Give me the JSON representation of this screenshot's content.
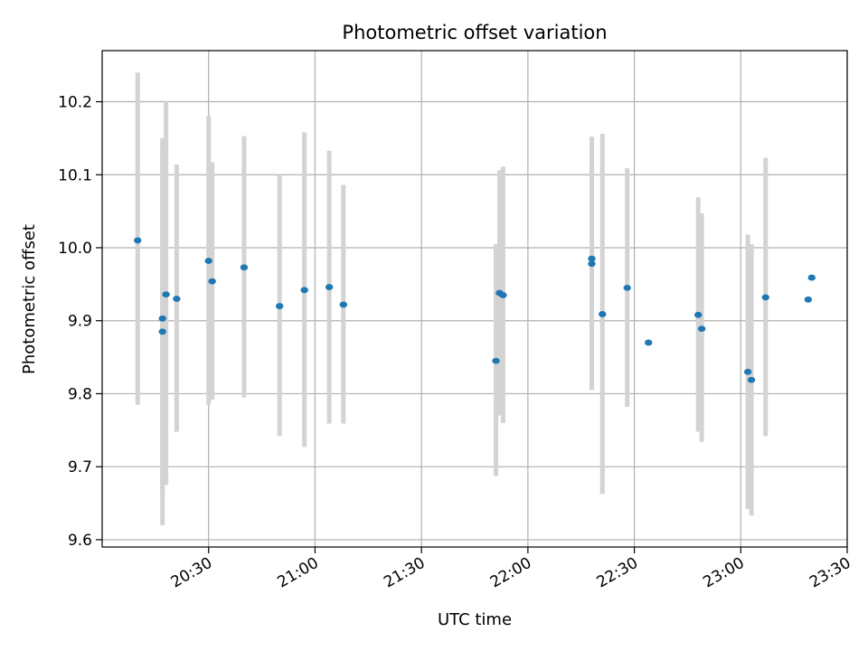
{
  "chart_data": {
    "type": "scatter",
    "title": "Photometric offset variation",
    "xlabel": "UTC time",
    "ylabel": "Photometric offset",
    "xlim": [
      "20:00",
      "23:30"
    ],
    "ylim": [
      9.59,
      10.27
    ],
    "grid": true,
    "x_ticks": [
      "20:30",
      "21:00",
      "21:30",
      "22:00",
      "22:30",
      "23:00",
      "23:30"
    ],
    "y_ticks": [
      "9.6",
      "9.7",
      "9.8",
      "9.9",
      "10.0",
      "10.1",
      "10.2"
    ],
    "colors": {
      "points": "#1f77b4",
      "errorbars": "#d3d3d3",
      "grid": "#b0b0b0"
    },
    "points": [
      {
        "x": "20:10",
        "y": 10.01,
        "ylow": 9.785,
        "yhigh": 10.24
      },
      {
        "x": "20:17",
        "y": 9.903,
        "ylow": 9.667,
        "yhigh": 10.14
      },
      {
        "x": "20:17",
        "y": 9.885,
        "ylow": 9.62,
        "yhigh": 10.15
      },
      {
        "x": "20:18",
        "y": 9.936,
        "ylow": 9.675,
        "yhigh": 10.2
      },
      {
        "x": "20:21",
        "y": 9.93,
        "ylow": 9.748,
        "yhigh": 10.114
      },
      {
        "x": "20:30",
        "y": 9.982,
        "ylow": 9.785,
        "yhigh": 10.181
      },
      {
        "x": "20:31",
        "y": 9.954,
        "ylow": 9.792,
        "yhigh": 10.117
      },
      {
        "x": "20:40",
        "y": 9.973,
        "ylow": 9.795,
        "yhigh": 10.153
      },
      {
        "x": "20:50",
        "y": 9.92,
        "ylow": 9.742,
        "yhigh": 10.1
      },
      {
        "x": "20:57",
        "y": 9.942,
        "ylow": 9.727,
        "yhigh": 10.158
      },
      {
        "x": "21:04",
        "y": 9.946,
        "ylow": 9.759,
        "yhigh": 10.133
      },
      {
        "x": "21:08",
        "y": 9.922,
        "ylow": 9.759,
        "yhigh": 10.086
      },
      {
        "x": "21:51",
        "y": 9.845,
        "ylow": 9.687,
        "yhigh": 10.005
      },
      {
        "x": "21:52",
        "y": 9.938,
        "ylow": 9.77,
        "yhigh": 10.106
      },
      {
        "x": "21:53",
        "y": 9.935,
        "ylow": 9.76,
        "yhigh": 10.111
      },
      {
        "x": "22:18",
        "y": 9.978,
        "ylow": 9.805,
        "yhigh": 10.152
      },
      {
        "x": "22:18",
        "y": 9.985,
        "ylow": 9.818,
        "yhigh": 10.152
      },
      {
        "x": "22:21",
        "y": 9.909,
        "ylow": 9.663,
        "yhigh": 10.156
      },
      {
        "x": "22:28",
        "y": 9.945,
        "ylow": 9.782,
        "yhigh": 10.109
      },
      {
        "x": "22:34",
        "y": 9.87,
        "ylow": 9.87,
        "yhigh": 9.87
      },
      {
        "x": "22:48",
        "y": 9.908,
        "ylow": 9.748,
        "yhigh": 10.069
      },
      {
        "x": "22:49",
        "y": 9.889,
        "ylow": 9.734,
        "yhigh": 10.047
      },
      {
        "x": "23:02",
        "y": 9.83,
        "ylow": 9.642,
        "yhigh": 10.018
      },
      {
        "x": "23:03",
        "y": 9.819,
        "ylow": 9.633,
        "yhigh": 10.005
      },
      {
        "x": "23:07",
        "y": 9.932,
        "ylow": 9.742,
        "yhigh": 10.123
      },
      {
        "x": "23:19",
        "y": 9.929,
        "ylow": 9.929,
        "yhigh": 9.929
      },
      {
        "x": "23:20",
        "y": 9.959,
        "ylow": 9.959,
        "yhigh": 9.959
      }
    ]
  }
}
